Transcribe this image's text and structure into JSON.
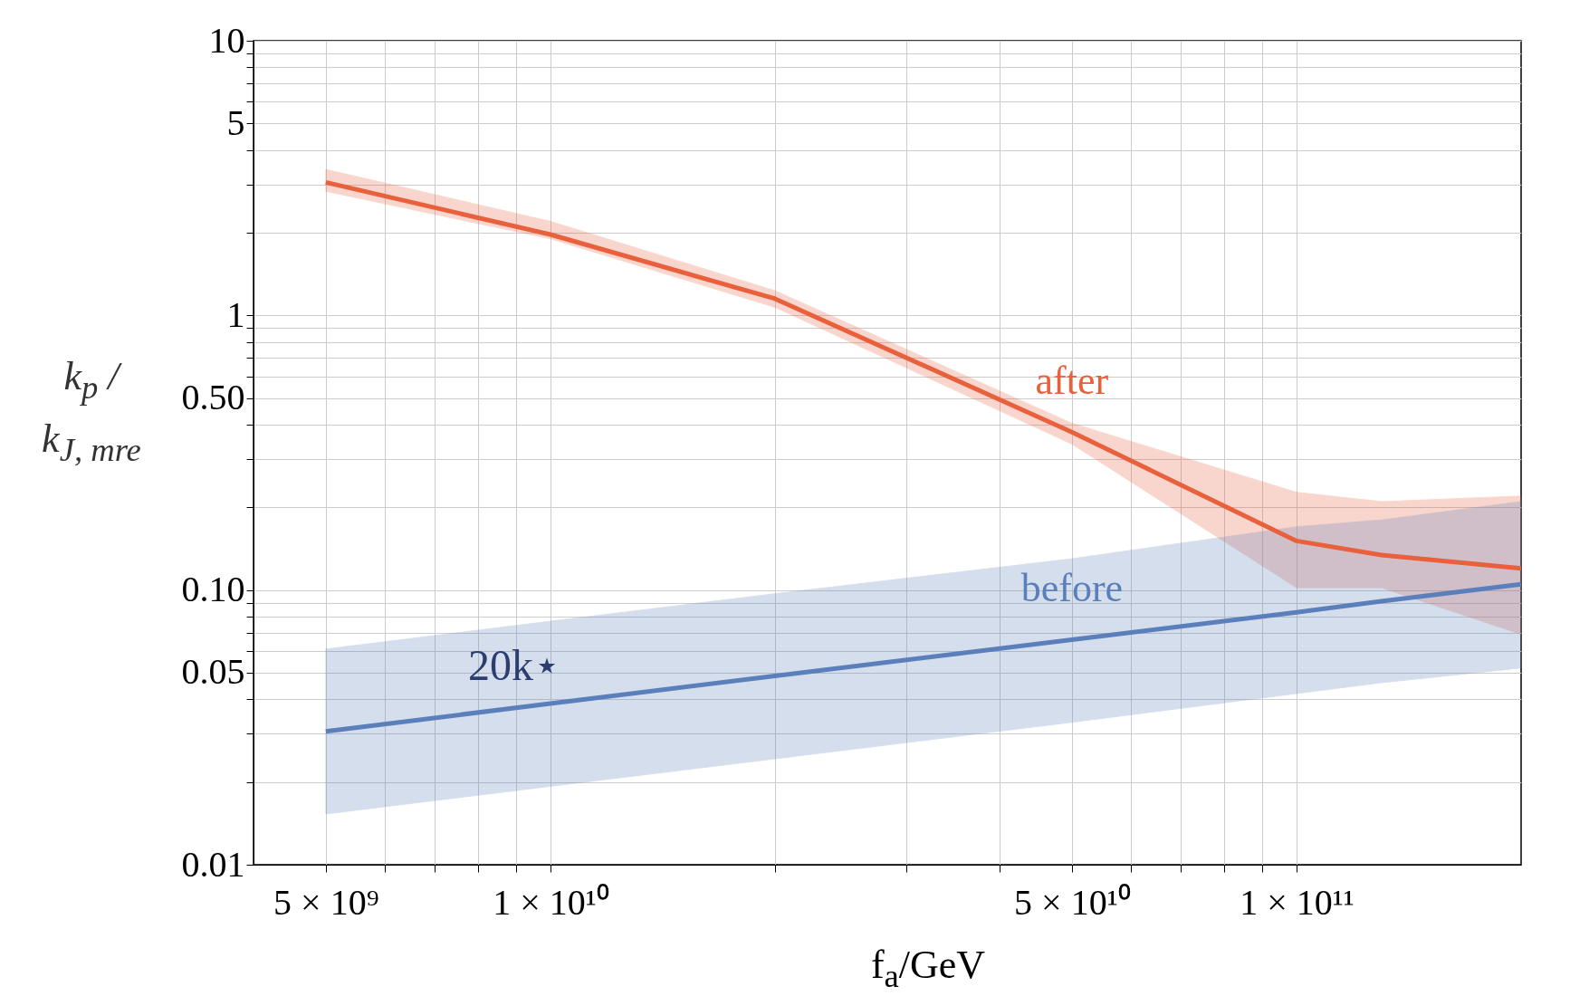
{
  "chart_data": {
    "type": "line",
    "xlabel": "f$_{a}$/GeV",
    "ylabel": "k$_{p}$ / k$_{J, mre}$",
    "log": "xy",
    "grid": true,
    "legend": false,
    "marker": "none",
    "x": [
      5000000000.0,
      10000000000.0,
      20000000000.0,
      50000000000.0,
      100000000000.0,
      130000000000.0,
      200000000000.0
    ],
    "xlim": [
      4000000000.0,
      200000000000.0
    ],
    "xticks": [
      {
        "value": 5000000000.0,
        "label": "5 × 10⁹"
      },
      {
        "value": 6000000000.0,
        "label": null
      },
      {
        "value": 7000000000.0,
        "label": null
      },
      {
        "value": 8000000000.0,
        "label": null
      },
      {
        "value": 9000000000.0,
        "label": null
      },
      {
        "value": 10000000000.0,
        "label": "1 × 10¹⁰"
      },
      {
        "value": 20000000000.0,
        "label": null
      },
      {
        "value": 30000000000.0,
        "label": null
      },
      {
        "value": 40000000000.0,
        "label": null
      },
      {
        "value": 50000000000.0,
        "label": "5 × 10¹⁰"
      },
      {
        "value": 60000000000.0,
        "label": null
      },
      {
        "value": 70000000000.0,
        "label": null
      },
      {
        "value": 80000000000.0,
        "label": null
      },
      {
        "value": 90000000000.0,
        "label": null
      },
      {
        "value": 100000000000.0,
        "label": "1 × 10¹¹"
      }
    ],
    "ylim": [
      0.01,
      10
    ],
    "yticks": [
      {
        "value": 0.01,
        "label": "0.01"
      },
      {
        "value": 0.02,
        "label": null
      },
      {
        "value": 0.03,
        "label": null
      },
      {
        "value": 0.04,
        "label": null
      },
      {
        "value": 0.05,
        "label": "0.05"
      },
      {
        "value": 0.06,
        "label": null
      },
      {
        "value": 0.07,
        "label": null
      },
      {
        "value": 0.08,
        "label": null
      },
      {
        "value": 0.09,
        "label": null
      },
      {
        "value": 0.1,
        "label": "0.10"
      },
      {
        "value": 0.2,
        "label": null
      },
      {
        "value": 0.3,
        "label": null
      },
      {
        "value": 0.4,
        "label": null
      },
      {
        "value": 0.5,
        "label": "0.50"
      },
      {
        "value": 0.6,
        "label": null
      },
      {
        "value": 0.7,
        "label": null
      },
      {
        "value": 0.8,
        "label": null
      },
      {
        "value": 0.9,
        "label": null
      },
      1,
      {
        "value": 2,
        "label": null
      },
      {
        "value": 3,
        "label": null
      },
      {
        "value": 4,
        "label": null
      },
      5,
      {
        "value": 6,
        "label": null
      },
      {
        "value": 7,
        "label": null
      },
      {
        "value": 8,
        "label": null
      },
      {
        "value": 9,
        "label": null
      },
      10
    ],
    "series": [
      {
        "name": "after",
        "color": "#e8603c",
        "values": [
          3.05,
          1.97,
          1.15,
          0.376,
          0.151,
          0.134,
          0.12
        ],
        "lower": [
          2.83,
          1.9,
          1.07,
          0.34,
          0.102,
          0.102,
          0.069
        ],
        "upper": [
          3.4,
          2.2,
          1.23,
          0.405,
          0.227,
          0.21,
          0.22
        ]
      },
      {
        "name": "before",
        "color": "#5b7fba",
        "values": [
          0.0306,
          0.0386,
          0.0487,
          0.066,
          0.083,
          0.091,
          0.105
        ],
        "lower": [
          0.0153,
          0.0193,
          0.0243,
          0.033,
          0.042,
          0.046,
          0.052
        ],
        "upper": [
          0.061,
          0.077,
          0.097,
          0.13,
          0.17,
          0.18,
          0.21
        ]
      }
    ],
    "annotations": [
      "20k⋆"
    ]
  }
}
